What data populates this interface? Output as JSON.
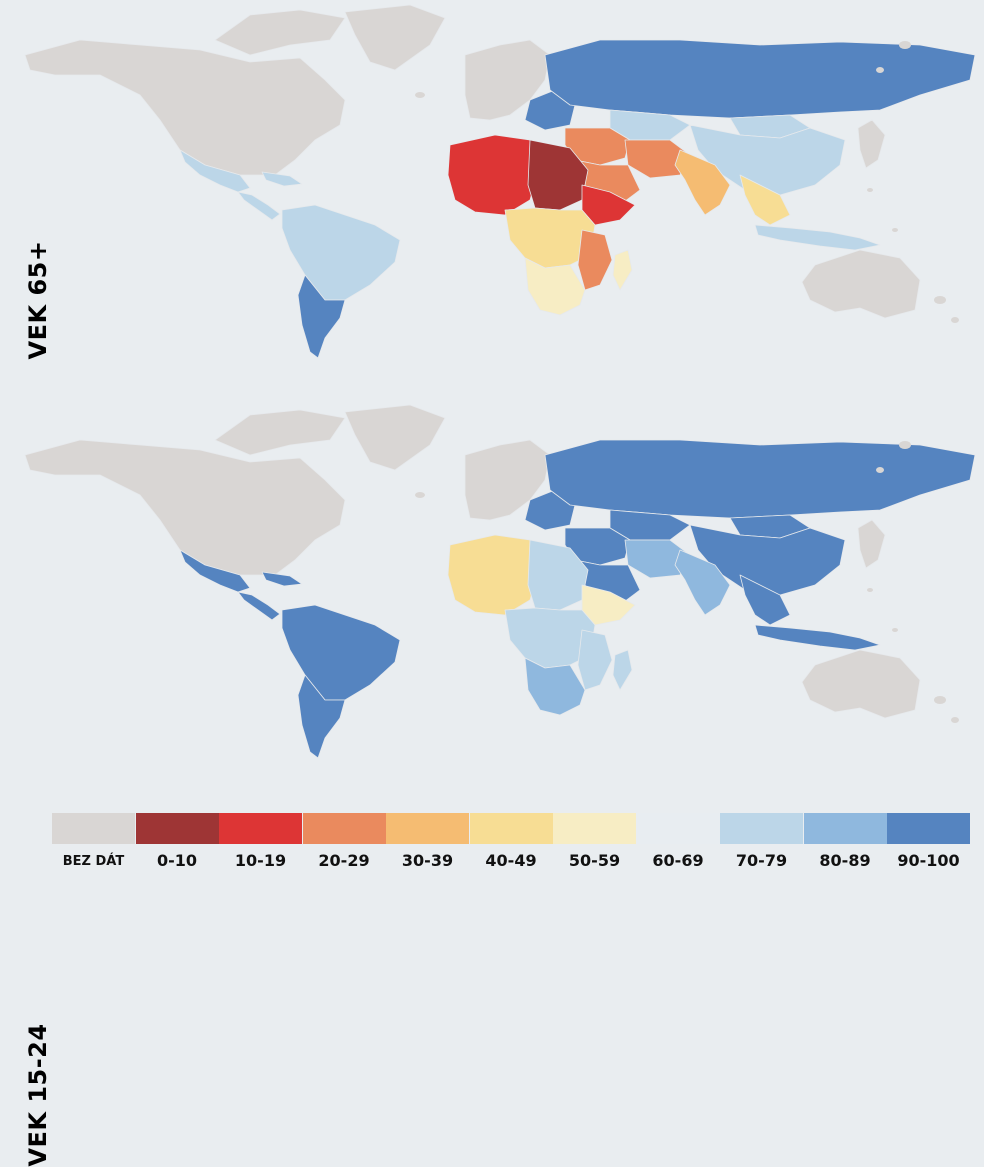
{
  "panels": [
    {
      "id": "top",
      "label": "VEK 65+",
      "regions": {
        "north_america": "gray",
        "greenland": "gray",
        "canada_arctic": "gray",
        "central_america": "light",
        "mexico": "light",
        "caribbean": "light",
        "south_america_north": "light",
        "south_america_south": "blue",
        "europe_west": "gray",
        "europe_east": "blue",
        "russia": "blue",
        "china": "light",
        "mongolia": "light",
        "kazakh": "light",
        "middle_east": "orange",
        "arabia": "orange",
        "iran": "orange",
        "india": "peach",
        "southeast_asia": "yellow",
        "sahara_west": "red",
        "sahara_east": "darkred",
        "horn": "red",
        "africa_central": "yellow",
        "africa_east": "orange",
        "africa_south": "pale",
        "madagascar": "pale",
        "australia": "gray",
        "indonesia": "light",
        "japan": "gray"
      }
    },
    {
      "id": "bottom",
      "label": "VEK 15-24",
      "regions": {
        "north_america": "gray",
        "greenland": "gray",
        "canada_arctic": "gray",
        "central_america": "blue",
        "mexico": "blue",
        "caribbean": "blue",
        "south_america_north": "blue",
        "south_america_south": "blue",
        "europe_west": "gray",
        "europe_east": "blue",
        "russia": "blue",
        "china": "blue",
        "mongolia": "blue",
        "kazakh": "blue",
        "middle_east": "blue",
        "arabia": "blue",
        "iran": "mid",
        "india": "mid",
        "southeast_asia": "blue",
        "sahara_west": "yellow",
        "sahara_east": "light",
        "horn": "pale",
        "africa_central": "light",
        "africa_east": "light",
        "africa_south": "mid",
        "madagascar": "light",
        "australia": "gray",
        "indonesia": "blue",
        "japan": "gray"
      }
    }
  ],
  "legend": [
    {
      "label": "BEZ DÁT",
      "color": "#d9d6d4"
    },
    {
      "label": "0-10",
      "color": "#9e3535"
    },
    {
      "label": "10-19",
      "color": "#dd3535"
    },
    {
      "label": "20-29",
      "color": "#ea8a5e"
    },
    {
      "label": "30-39",
      "color": "#f5bc72"
    },
    {
      "label": "40-49",
      "color": "#f7dd94"
    },
    {
      "label": "50-59",
      "color": "#f7edc4"
    },
    {
      "label": "60-69",
      "color": "#e8edf1"
    },
    {
      "label": "70-79",
      "color": "#bcd6e8"
    },
    {
      "label": "80-89",
      "color": "#8fb8de"
    },
    {
      "label": "90-100",
      "color": "#5584c0"
    }
  ],
  "palette": {
    "gray": "#d9d6d4",
    "darkred": "#9e3535",
    "red": "#dd3535",
    "orange": "#ea8a5e",
    "peach": "#f5bc72",
    "yellow": "#f7dd94",
    "pale": "#f7edc4",
    "white": "#e8edf1",
    "light": "#bcd6e8",
    "mid": "#8fb8de",
    "blue": "#5584c0"
  }
}
